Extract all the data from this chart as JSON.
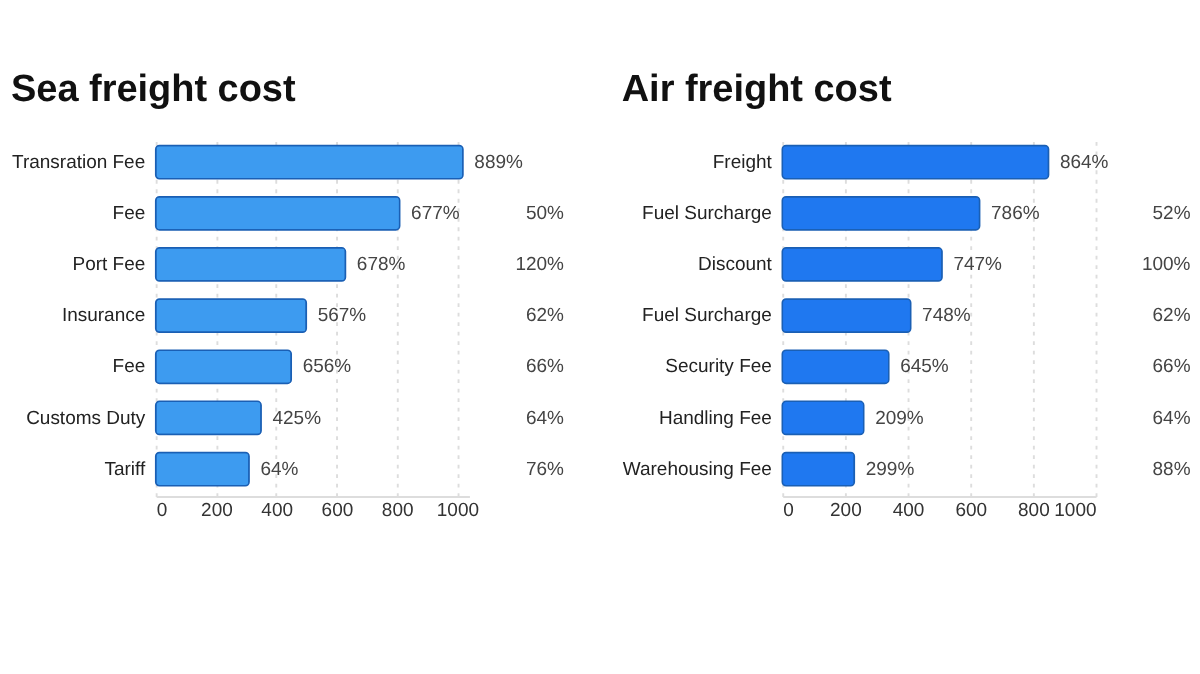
{
  "chart_data": [
    {
      "type": "bar",
      "title": "Sea freight cost",
      "orientation": "horizontal",
      "categories": [
        "Transration Fee",
        "Fee",
        "Port Fee",
        "Insurance",
        "Fee",
        "Customs Duty",
        "Tariff"
      ],
      "series": [
        {
          "color": "#3d9bf0",
          "values": [
            1020,
            810,
            630,
            500,
            450,
            350,
            310
          ]
        }
      ],
      "annotations": [
        "889%",
        "677%",
        "678%",
        "567%",
        "656%",
        "425%",
        "64%",
        "50%",
        "120%",
        "62%",
        "66%",
        "64%",
        "76%"
      ],
      "xlim": [
        0,
        1040
      ],
      "xticks": [
        0,
        200,
        400,
        600,
        800,
        1000
      ],
      "grid": "x"
    },
    {
      "type": "bar",
      "title": "Air freight cost",
      "orientation": "horizontal",
      "categories": [
        "Freight",
        "Fuel Surcharge",
        "Discount",
        "Fuel Surcharge",
        "Security Fee",
        "Handling Fee",
        "Warehousing Fee"
      ],
      "series": [
        {
          "color": "#1f78f0",
          "values": [
            850,
            630,
            510,
            410,
            340,
            260,
            230
          ]
        }
      ],
      "annotations": [
        "864%",
        "786%",
        "747%",
        "748%",
        "645%",
        "209%",
        "299%",
        "52%",
        "100%",
        "62%",
        "66%",
        "64%",
        "88%"
      ],
      "xlim": [
        0,
        1000
      ],
      "xticks": [
        0,
        200,
        400,
        600,
        800,
        1000
      ],
      "grid": "x"
    }
  ]
}
